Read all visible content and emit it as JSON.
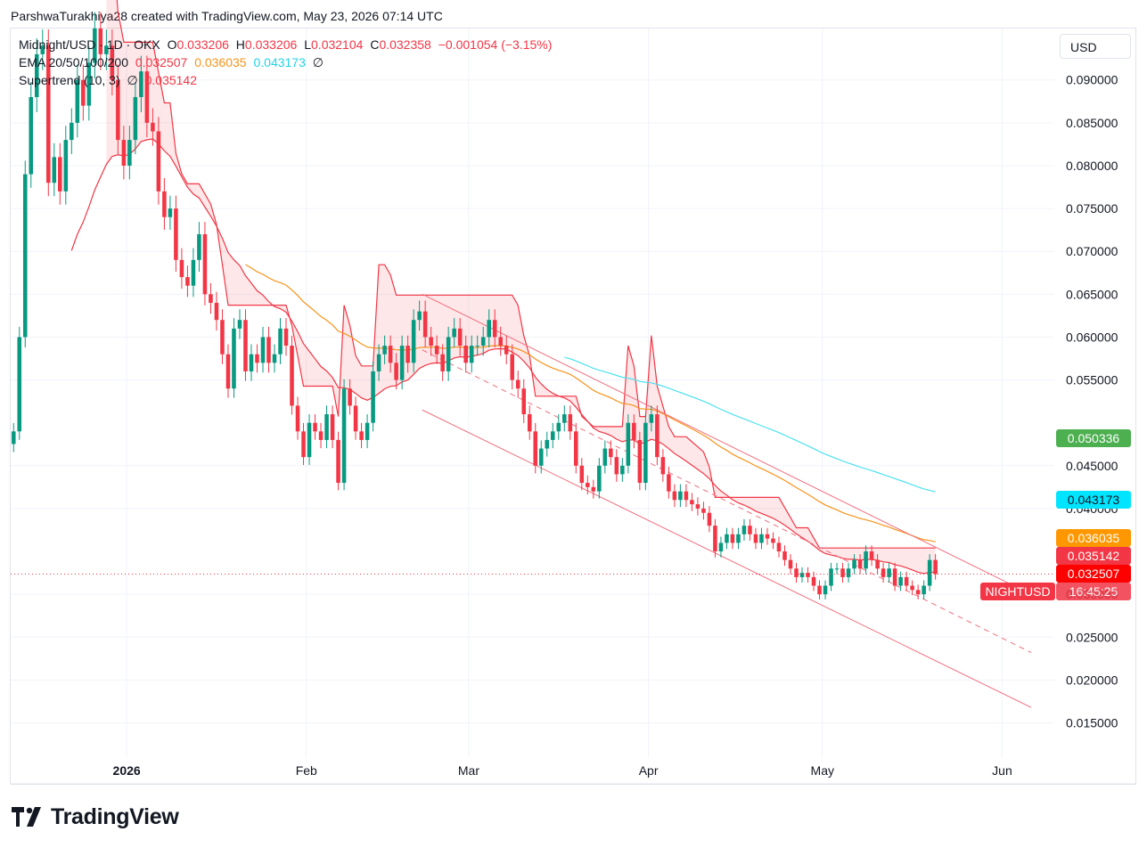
{
  "caption": "ParshwaTurakhiya28 created with TradingView.com, May 23, 2026 07:14 UTC",
  "legend": {
    "symbol": "Midnight/USD · 1D · OKX",
    "o_label": "O",
    "o_value": "0.033206",
    "h_label": "H",
    "h_value": "0.033206",
    "l_label": "L",
    "l_value": "0.032104",
    "c_label": "C",
    "c_value": "0.032358",
    "change": "−0.001054 (−3.15%)",
    "ema_label": "EMA 20/50/100/200",
    "ema20": "0.032507",
    "ema50": "0.036035",
    "ema100": "0.043173",
    "ema200": "∅",
    "st_label": "Supertrend (10, 3)",
    "st_up": "∅",
    "st_down": "0.035142"
  },
  "currency_button": "USD",
  "price_tags": {
    "green": "0.050336",
    "ema100": "0.043173",
    "ema50": "0.036035",
    "supertrend": "0.035142",
    "ema20": "0.032507",
    "last": "0.032358",
    "countdown": "16:45:25",
    "symbol": "NIGHTUSD"
  },
  "colors": {
    "up": "#089981",
    "down": "#f23645",
    "ema20": "#f23645",
    "ema50": "#f7931a",
    "ema100": "#4de1f0",
    "st_down": "#f23645",
    "st_up": "#4caf50",
    "green_tag": "#4caf50",
    "ema100_tag": "#00e5ff",
    "ema50_tag": "#ff9800",
    "ema20_tag": "#ff0000"
  },
  "logo_text": "TradingView",
  "chart_data": {
    "type": "candlestick",
    "title": "Midnight/USD · 1D · OKX",
    "ylim": [
      0.011,
      0.096
    ],
    "y_ticks": [
      0.09,
      0.085,
      0.08,
      0.075,
      0.07,
      0.065,
      0.06,
      0.055,
      0.045,
      0.04,
      0.03,
      0.025,
      0.02,
      0.015
    ],
    "y_tick_labels": [
      "0.090000",
      "0.085000",
      "0.080000",
      "0.075000",
      "0.070000",
      "0.065000",
      "0.060000",
      "0.055000",
      "0.045000",
      "0.040000",
      "0.030000",
      "0.025000",
      "0.020000",
      "0.015000"
    ],
    "x_range": [
      "2025-12-12",
      "2026-06-10"
    ],
    "x_ticks": [
      {
        "date": "2026-01-01",
        "label": "2026"
      },
      {
        "date": "2026-02-01",
        "label": "Feb"
      },
      {
        "date": "2026-03-01",
        "label": "Mar"
      },
      {
        "date": "2026-04-01",
        "label": "Apr"
      },
      {
        "date": "2026-05-01",
        "label": "May"
      },
      {
        "date": "2026-06-01",
        "label": "Jun"
      }
    ],
    "grid": true,
    "last_price": 0.032358,
    "candles": {
      "start_date": "2025-12-12",
      "close": [
        0.049,
        0.06,
        0.079,
        0.088,
        0.093,
        0.094,
        0.078,
        0.081,
        0.077,
        0.083,
        0.085,
        0.09,
        0.087,
        0.092,
        0.096,
        0.093,
        0.094,
        0.09,
        0.083,
        0.08,
        0.083,
        0.088,
        0.091,
        0.085,
        0.084,
        0.077,
        0.074,
        0.075,
        0.069,
        0.067,
        0.066,
        0.069,
        0.072,
        0.065,
        0.064,
        0.062,
        0.058,
        0.054,
        0.061,
        0.062,
        0.056,
        0.058,
        0.057,
        0.06,
        0.057,
        0.058,
        0.061,
        0.059,
        0.052,
        0.049,
        0.046,
        0.05,
        0.049,
        0.048,
        0.051,
        0.048,
        0.043,
        0.054,
        0.052,
        0.049,
        0.048,
        0.05,
        0.056,
        0.058,
        0.059,
        0.057,
        0.055,
        0.059,
        0.057,
        0.062,
        0.063,
        0.06,
        0.059,
        0.058,
        0.056,
        0.06,
        0.061,
        0.059,
        0.057,
        0.059,
        0.059,
        0.06,
        0.062,
        0.06,
        0.059,
        0.058,
        0.055,
        0.054,
        0.051,
        0.049,
        0.045,
        0.047,
        0.048,
        0.049,
        0.05,
        0.051,
        0.049,
        0.045,
        0.043,
        0.0425,
        0.042,
        0.045,
        0.047,
        0.046,
        0.044,
        0.045,
        0.05,
        0.048,
        0.043,
        0.05,
        0.051,
        0.046,
        0.044,
        0.042,
        0.041,
        0.042,
        0.041,
        0.0405,
        0.04,
        0.0395,
        0.038,
        0.035,
        0.036,
        0.037,
        0.036,
        0.037,
        0.038,
        0.037,
        0.036,
        0.037,
        0.0365,
        0.036,
        0.035,
        0.034,
        0.033,
        0.032,
        0.0325,
        0.032,
        0.031,
        0.03,
        0.031,
        0.033,
        0.033,
        0.032,
        0.033,
        0.034,
        0.033,
        0.035,
        0.034,
        0.033,
        0.032,
        0.033,
        0.031,
        0.032,
        0.031,
        0.0305,
        0.03,
        0.031,
        0.034,
        0.032358
      ],
      "open_high_low": "derived from consecutive closes"
    },
    "series": [
      {
        "name": "EMA 20",
        "last": 0.032507
      },
      {
        "name": "EMA 50",
        "last": 0.036035
      },
      {
        "name": "EMA 100",
        "last": 0.043173
      },
      {
        "name": "Supertrend (10, 3)",
        "last": 0.035142
      }
    ]
  }
}
